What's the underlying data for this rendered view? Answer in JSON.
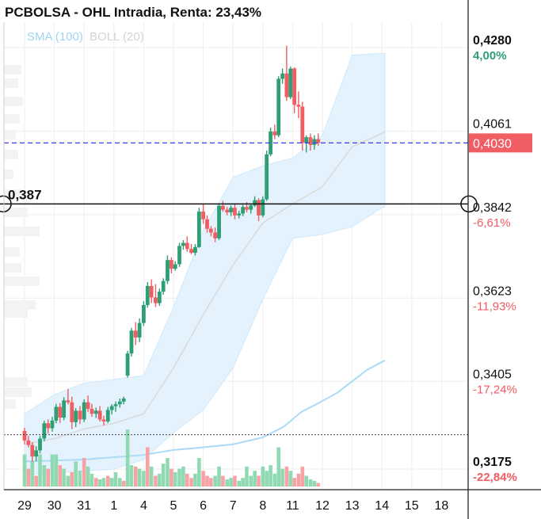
{
  "header": {
    "title": "PCBOLSA - OHL Intradia, Renta: 23,43%",
    "legend_sma": "SMA (100)",
    "legend_boll": "BOLL (20)"
  },
  "colors": {
    "up": "#2e9f74",
    "down": "#f05d63",
    "band_fill": "#e3f2fc",
    "band_line": "#cfe9fb",
    "sma": "#a9dbf7",
    "boll_mid": "#d9d9d9",
    "last_price": "#3b3bef",
    "volume_up": "#8fdab2",
    "volume_down": "#f7a3a6",
    "price_tag_bg": "#f05d63"
  },
  "chart_data": {
    "type": "candlestick",
    "title": "PCBOLSA - OHL Intradia, Renta: 23,43%",
    "x_tick_labels": [
      "29",
      "30",
      "31",
      "1",
      "4",
      "5",
      "6",
      "7",
      "8",
      "11",
      "12",
      "13",
      "14",
      "15",
      "18"
    ],
    "y_axis": {
      "range": [
        0.3175,
        0.428
      ],
      "labels": [
        {
          "value": "0,4280",
          "pct": "4,00%",
          "pct_dir": "up"
        },
        {
          "value": "0,4061",
          "pct": "",
          "pct_dir": "none"
        },
        {
          "value": "0,3842",
          "pct": "-6,61%",
          "pct_dir": "down"
        },
        {
          "value": "0,3623",
          "pct": "-11,93%",
          "pct_dir": "down"
        },
        {
          "value": "0,3405",
          "pct": "-17,24%",
          "pct_dir": "down"
        },
        {
          "value": "0,3175",
          "pct": "-22,84%",
          "pct_dir": "down"
        }
      ]
    },
    "last_price": {
      "value": 0.403,
      "label": "0,4030"
    },
    "crosshair": {
      "value": 0.387,
      "label": "0,387"
    },
    "reference_dotted": {
      "value": 0.3265
    },
    "grid": true,
    "legend": "top-left",
    "series": [
      {
        "name": "SMA (100)",
        "type": "line",
        "points": [
          [
            0,
            0.3195
          ],
          [
            2,
            0.32
          ],
          [
            4,
            0.3212
          ],
          [
            5,
            0.3225
          ],
          [
            6,
            0.3232
          ],
          [
            7,
            0.324
          ],
          [
            8,
            0.3258
          ],
          [
            8.7,
            0.3286
          ],
          [
            9.3,
            0.3325
          ],
          [
            9.8,
            0.3345
          ],
          [
            10.5,
            0.3375
          ],
          [
            11.5,
            0.3435
          ],
          [
            12.1,
            0.346
          ]
        ]
      },
      {
        "name": "BOLL (20)",
        "type": "band",
        "points": [
          [
            0,
            0.324,
            0.332,
            0.316
          ],
          [
            1,
            0.3255,
            0.337,
            0.3165
          ],
          [
            2,
            0.328,
            0.34,
            0.317
          ],
          [
            3,
            0.3295,
            0.341,
            0.3175
          ],
          [
            4,
            0.332,
            0.342,
            0.32
          ],
          [
            5,
            0.344,
            0.36,
            0.327
          ],
          [
            6,
            0.358,
            0.38,
            0.333
          ],
          [
            7,
            0.371,
            0.394,
            0.344
          ],
          [
            8,
            0.382,
            0.397,
            0.362
          ],
          [
            9,
            0.387,
            0.399,
            0.378
          ],
          [
            10,
            0.3915,
            0.405,
            0.379
          ],
          [
            11,
            0.402,
            0.426,
            0.381
          ],
          [
            12,
            0.4055,
            0.4265,
            0.386
          ],
          [
            12.1,
            0.406,
            0.4265,
            0.3862
          ]
        ]
      }
    ],
    "candles": [
      [
        0.0,
        0.3275,
        0.3283,
        0.324,
        0.325
      ],
      [
        0.13,
        0.325,
        0.3262,
        0.3232,
        0.3238
      ],
      [
        0.26,
        0.3238,
        0.3246,
        0.3194,
        0.3208
      ],
      [
        0.39,
        0.3208,
        0.3235,
        0.3196,
        0.3224
      ],
      [
        0.52,
        0.3224,
        0.3262,
        0.3216,
        0.3255
      ],
      [
        0.66,
        0.3255,
        0.3302,
        0.3248,
        0.3295
      ],
      [
        0.79,
        0.3295,
        0.3305,
        0.3268,
        0.3282
      ],
      [
        0.93,
        0.3282,
        0.3312,
        0.3273,
        0.3302
      ],
      [
        1.06,
        0.3302,
        0.3346,
        0.3295,
        0.3338
      ],
      [
        1.19,
        0.3338,
        0.3348,
        0.3296,
        0.331
      ],
      [
        1.32,
        0.331,
        0.3363,
        0.3303,
        0.3355
      ],
      [
        1.46,
        0.3355,
        0.3385,
        0.3345,
        0.335
      ],
      [
        1.59,
        0.335,
        0.3365,
        0.328,
        0.3298
      ],
      [
        1.72,
        0.3298,
        0.3335,
        0.3285,
        0.3328
      ],
      [
        1.86,
        0.3328,
        0.334,
        0.3293,
        0.3305
      ],
      [
        2.0,
        0.3305,
        0.3358,
        0.3298,
        0.335
      ],
      [
        2.13,
        0.335,
        0.3368,
        0.3325,
        0.3333
      ],
      [
        2.26,
        0.3333,
        0.3346,
        0.3312,
        0.332
      ],
      [
        2.4,
        0.332,
        0.3336,
        0.3309,
        0.3328
      ],
      [
        2.53,
        0.3328,
        0.334,
        0.33,
        0.3305
      ],
      [
        2.66,
        0.3305,
        0.3315,
        0.329,
        0.33
      ],
      [
        2.8,
        0.33,
        0.3338,
        0.3296,
        0.333
      ],
      [
        2.93,
        0.333,
        0.3345,
        0.3318,
        0.334
      ],
      [
        3.06,
        0.334,
        0.3352,
        0.3325,
        0.3345
      ],
      [
        3.2,
        0.3345,
        0.336,
        0.3336,
        0.3352
      ],
      [
        3.33,
        0.3352,
        0.3365,
        0.3345,
        0.336
      ],
      [
        3.46,
        0.342,
        0.3485,
        0.3415,
        0.3478
      ],
      [
        3.59,
        0.3478,
        0.3545,
        0.347,
        0.3538
      ],
      [
        3.73,
        0.3538,
        0.356,
        0.35,
        0.352
      ],
      [
        3.86,
        0.352,
        0.357,
        0.3508,
        0.3558
      ],
      [
        4.0,
        0.3558,
        0.3615,
        0.355,
        0.3605
      ],
      [
        4.13,
        0.3605,
        0.3665,
        0.3598,
        0.3655
      ],
      [
        4.26,
        0.3655,
        0.3672,
        0.361,
        0.3625
      ],
      [
        4.4,
        0.3625,
        0.366,
        0.36,
        0.361
      ],
      [
        4.53,
        0.361,
        0.3648,
        0.3603,
        0.364
      ],
      [
        4.66,
        0.364,
        0.3675,
        0.3632,
        0.3668
      ],
      [
        4.8,
        0.3668,
        0.3735,
        0.366,
        0.3723
      ],
      [
        4.93,
        0.3723,
        0.373,
        0.3688,
        0.37
      ],
      [
        5.06,
        0.37,
        0.372,
        0.3695,
        0.3712
      ],
      [
        5.2,
        0.3712,
        0.3768,
        0.3705,
        0.376
      ],
      [
        5.33,
        0.376,
        0.3775,
        0.375,
        0.3768
      ],
      [
        5.46,
        0.3768,
        0.3785,
        0.3745,
        0.3752
      ],
      [
        5.6,
        0.3752,
        0.3765,
        0.3738,
        0.3742
      ],
      [
        5.73,
        0.3742,
        0.3765,
        0.3735,
        0.3757
      ],
      [
        5.86,
        0.3757,
        0.386,
        0.3755,
        0.385
      ],
      [
        6.0,
        0.385,
        0.387,
        0.3818,
        0.383
      ],
      [
        6.13,
        0.383,
        0.384,
        0.3795,
        0.3805
      ],
      [
        6.26,
        0.3805,
        0.3812,
        0.3785,
        0.3795
      ],
      [
        6.4,
        0.3795,
        0.3808,
        0.377,
        0.378
      ],
      [
        6.53,
        0.378,
        0.3872,
        0.3775,
        0.3865
      ],
      [
        6.66,
        0.3865,
        0.3878,
        0.385,
        0.3855
      ],
      [
        6.8,
        0.3855,
        0.3862,
        0.384,
        0.3848
      ],
      [
        6.93,
        0.3848,
        0.3866,
        0.3838,
        0.386
      ],
      [
        7.06,
        0.386,
        0.387,
        0.383,
        0.384
      ],
      [
        7.2,
        0.384,
        0.3852,
        0.3832,
        0.3845
      ],
      [
        7.33,
        0.3845,
        0.3868,
        0.3838,
        0.3862
      ],
      [
        7.46,
        0.3862,
        0.3875,
        0.3848,
        0.3855
      ],
      [
        7.6,
        0.3855,
        0.387,
        0.3845,
        0.3866
      ],
      [
        7.73,
        0.3866,
        0.389,
        0.3862,
        0.388
      ],
      [
        7.86,
        0.388,
        0.3885,
        0.3825,
        0.384
      ],
      [
        8.0,
        0.384,
        0.389,
        0.3835,
        0.3882
      ],
      [
        8.13,
        0.3882,
        0.401,
        0.3878,
        0.4
      ],
      [
        8.26,
        0.4,
        0.407,
        0.3995,
        0.406
      ],
      [
        8.4,
        0.406,
        0.4078,
        0.404,
        0.405
      ],
      [
        8.53,
        0.405,
        0.4205,
        0.4045,
        0.4198
      ],
      [
        8.66,
        0.4198,
        0.4225,
        0.4185,
        0.4212
      ],
      [
        8.8,
        0.4212,
        0.4285,
        0.414,
        0.415
      ],
      [
        8.93,
        0.415,
        0.423,
        0.4145,
        0.4225
      ],
      [
        9.06,
        0.4225,
        0.4228,
        0.4108,
        0.413
      ],
      [
        9.2,
        0.413,
        0.4165,
        0.4095,
        0.4125
      ],
      [
        9.33,
        0.4125,
        0.4138,
        0.401,
        0.403
      ],
      [
        9.46,
        0.403,
        0.405,
        0.4005,
        0.4045
      ],
      [
        9.6,
        0.4045,
        0.4055,
        0.401,
        0.4025
      ],
      [
        9.73,
        0.4025,
        0.405,
        0.4012,
        0.404
      ],
      [
        9.86,
        0.404,
        0.4055,
        0.4022,
        0.403
      ]
    ],
    "volumes": [
      [
        0.0,
        0.45,
        "up"
      ],
      [
        0.13,
        0.25,
        "down"
      ],
      [
        0.26,
        0.35,
        "up"
      ],
      [
        0.39,
        0.15,
        "down"
      ],
      [
        0.52,
        0.45,
        "up"
      ],
      [
        0.66,
        0.3,
        "up"
      ],
      [
        0.79,
        0.25,
        "down"
      ],
      [
        0.93,
        0.45,
        "up"
      ],
      [
        1.06,
        0.45,
        "up"
      ],
      [
        1.19,
        0.3,
        "down"
      ],
      [
        1.32,
        0.25,
        "up"
      ],
      [
        1.46,
        0.15,
        "up"
      ],
      [
        1.59,
        0.2,
        "down"
      ],
      [
        1.72,
        0.35,
        "up"
      ],
      [
        1.86,
        0.22,
        "up"
      ],
      [
        2.0,
        0.4,
        "down"
      ],
      [
        2.13,
        0.28,
        "up"
      ],
      [
        2.26,
        0.18,
        "up"
      ],
      [
        2.4,
        0.12,
        "down"
      ],
      [
        2.53,
        0.1,
        "up"
      ],
      [
        2.66,
        0.12,
        "up"
      ],
      [
        2.8,
        0.15,
        "down"
      ],
      [
        2.93,
        0.12,
        "up"
      ],
      [
        3.06,
        0.2,
        "up"
      ],
      [
        3.2,
        0.12,
        "up"
      ],
      [
        3.33,
        0.08,
        "down"
      ],
      [
        3.46,
        0.8,
        "up"
      ],
      [
        3.59,
        0.3,
        "up"
      ],
      [
        3.73,
        0.28,
        "down"
      ],
      [
        3.86,
        0.25,
        "up"
      ],
      [
        4.0,
        0.22,
        "up"
      ],
      [
        4.13,
        0.55,
        "down"
      ],
      [
        4.26,
        0.28,
        "up"
      ],
      [
        4.4,
        0.15,
        "down"
      ],
      [
        4.53,
        0.18,
        "up"
      ],
      [
        4.66,
        0.32,
        "up"
      ],
      [
        4.8,
        0.4,
        "up"
      ],
      [
        4.93,
        0.25,
        "down"
      ],
      [
        5.06,
        0.2,
        "up"
      ],
      [
        5.2,
        0.25,
        "up"
      ],
      [
        5.33,
        0.28,
        "up"
      ],
      [
        5.46,
        0.18,
        "down"
      ],
      [
        5.6,
        0.12,
        "down"
      ],
      [
        5.73,
        0.18,
        "up"
      ],
      [
        5.86,
        0.4,
        "up"
      ],
      [
        6.0,
        0.22,
        "down"
      ],
      [
        6.13,
        0.15,
        "down"
      ],
      [
        6.26,
        0.12,
        "down"
      ],
      [
        6.4,
        0.15,
        "up"
      ],
      [
        6.53,
        0.28,
        "up"
      ],
      [
        6.66,
        0.15,
        "down"
      ],
      [
        6.8,
        0.1,
        "up"
      ],
      [
        6.93,
        0.12,
        "up"
      ],
      [
        7.06,
        0.15,
        "down"
      ],
      [
        7.2,
        0.08,
        "up"
      ],
      [
        7.33,
        0.12,
        "up"
      ],
      [
        7.46,
        0.28,
        "up"
      ],
      [
        7.6,
        0.15,
        "up"
      ],
      [
        7.73,
        0.22,
        "up"
      ],
      [
        7.86,
        0.15,
        "down"
      ],
      [
        8.0,
        0.28,
        "up"
      ],
      [
        8.13,
        0.22,
        "up"
      ],
      [
        8.26,
        0.3,
        "up"
      ],
      [
        8.4,
        0.18,
        "up"
      ],
      [
        8.53,
        0.55,
        "up"
      ],
      [
        8.66,
        0.25,
        "up"
      ],
      [
        8.8,
        0.28,
        "down"
      ],
      [
        8.93,
        0.22,
        "up"
      ],
      [
        9.06,
        0.12,
        "down"
      ],
      [
        9.2,
        0.18,
        "down"
      ],
      [
        9.33,
        0.28,
        "down"
      ],
      [
        9.46,
        0.15,
        "up"
      ],
      [
        9.6,
        0.1,
        "up"
      ],
      [
        9.73,
        0.08,
        "up"
      ],
      [
        9.86,
        0.05,
        "down"
      ]
    ]
  }
}
